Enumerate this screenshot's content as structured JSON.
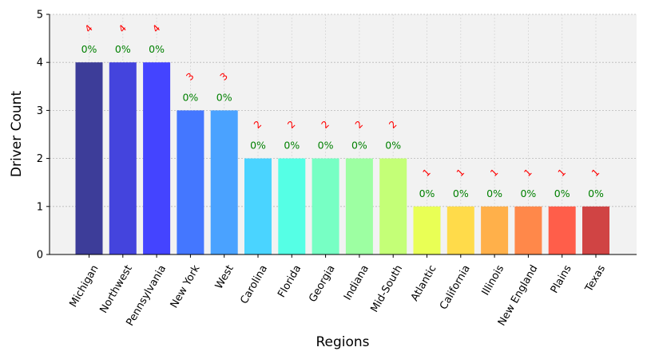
{
  "chart_data": {
    "type": "bar",
    "categories": [
      "Michigan",
      "Northwest",
      "Pennsylvania",
      "New York",
      "West",
      "Carolina",
      "Florida",
      "Georgia",
      "Indiana",
      "Mid-South",
      "Atlantic",
      "California",
      "Illinois",
      "New England",
      "Plains",
      "Texas"
    ],
    "values": [
      4,
      4,
      4,
      3,
      3,
      2,
      2,
      2,
      2,
      2,
      1,
      1,
      1,
      1,
      1,
      1
    ],
    "value_labels": [
      "4",
      "4",
      "4",
      "3",
      "3",
      "2",
      "2",
      "2",
      "2",
      "2",
      "1",
      "1",
      "1",
      "1",
      "1",
      "1"
    ],
    "percent_labels": [
      "0%",
      "0%",
      "0%",
      "0%",
      "0%",
      "0%",
      "0%",
      "0%",
      "0%",
      "0%",
      "0%",
      "0%",
      "0%",
      "0%",
      "0%",
      "0%"
    ],
    "bar_colors": [
      "#3d3d99",
      "#4444dd",
      "#4444ff",
      "#4477ff",
      "#4aa2ff",
      "#4ad4ff",
      "#55ffe5",
      "#77ffc4",
      "#9dffa2",
      "#c4ff77",
      "#e9ff55",
      "#ffdb4a",
      "#ffb04a",
      "#ff884a",
      "#ff5e4a",
      "#d04444"
    ],
    "xlabel": "Regions",
    "ylabel": "Driver Count",
    "ylim": [
      0,
      5
    ],
    "yticks": [
      0,
      1,
      2,
      3,
      4,
      5
    ],
    "grid": true,
    "background_color": "#f2f2f2",
    "value_label_color": "#ff0000",
    "percent_label_color": "#008000"
  }
}
